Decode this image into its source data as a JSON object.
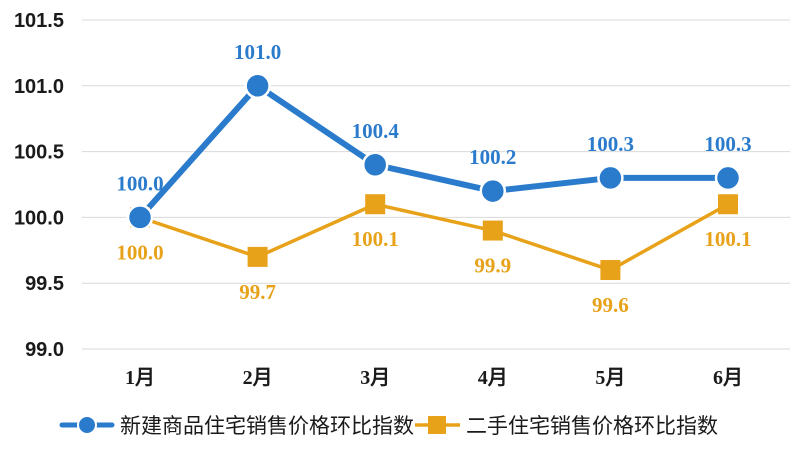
{
  "chart_data": {
    "type": "line",
    "categories": [
      "1月",
      "2月",
      "3月",
      "4月",
      "5月",
      "6月"
    ],
    "series": [
      {
        "name": "新建商品住宅销售价格环比指数",
        "values": [
          100.0,
          101.0,
          100.4,
          100.2,
          100.3,
          100.3
        ],
        "labels": [
          "100.0",
          "101.0",
          "100.4",
          "100.2",
          "100.3",
          "100.3"
        ],
        "color": "#2a7bcc",
        "marker": "circle",
        "label_position": "above"
      },
      {
        "name": "二手住宅销售价格环比指数",
        "values": [
          100.0,
          99.7,
          100.1,
          99.9,
          99.6,
          100.1
        ],
        "labels": [
          "100.0",
          "99.7",
          "100.1",
          "99.9",
          "99.6",
          "100.1"
        ],
        "color": "#e8a21a",
        "marker": "square",
        "label_position": "below"
      }
    ],
    "ylim": [
      99.0,
      101.5
    ],
    "yticks": [
      "99.0",
      "99.5",
      "100.0",
      "100.5",
      "101.0",
      "101.5"
    ],
    "grid": "horizontal",
    "legend": "bottom",
    "title": "",
    "xlabel": "",
    "ylabel": ""
  }
}
